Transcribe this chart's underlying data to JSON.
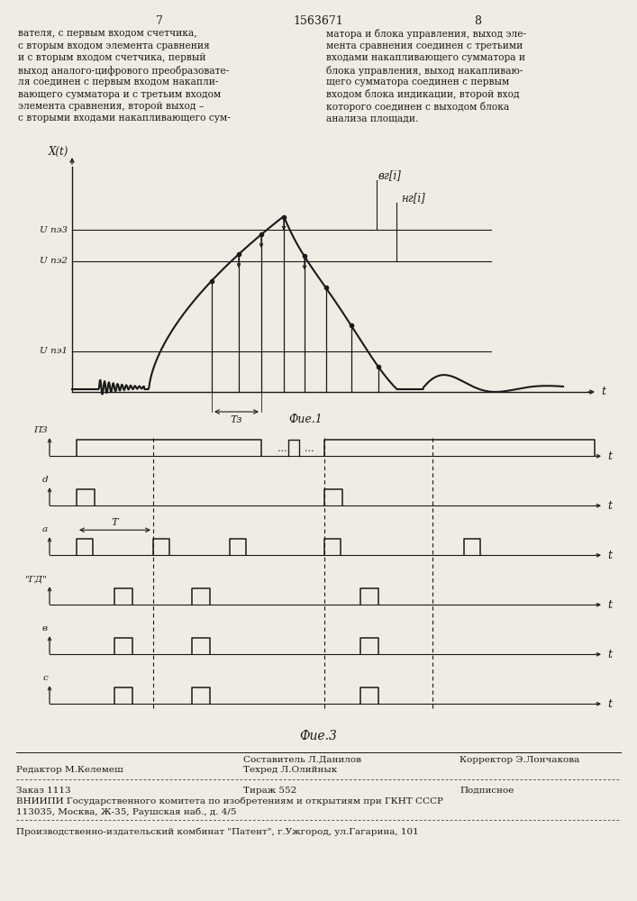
{
  "page_num_left": "7",
  "page_num_center": "1563671",
  "page_num_right": "8",
  "text_left": "вателя, с первым входом счетчика,\nс вторым входом элемента сравнения\nи с вторым входом счетчика, первый\nвыход аналого-цифрового преобразовате-\nля соединен с первым входом накапли-\nвающего сумматора и с третьим входом\nэлемента сравнения, второй выход –\nс вторыми входами накапливающего сум-",
  "text_right": "матора и блока управления, выход эле-\nмента сравнения соединен с третьими\nвходами накапливающего сумматора и\nблока управления, выход накапливаю-\nщего сумматора соединен с первым\nвходом блока индикации, второй вход\nкоторого соединен с выходом блока\nанализа площади.",
  "fig1_label": "Фие.1",
  "fig3_label": "Фие.3",
  "bg_color": "#f0ece4",
  "line_color": "#1a1a1a",
  "footer_line1_left": "Редактор М.Келемеш",
  "footer_line1_center_top": "Составитель Л.Данилов",
  "footer_line1_center_bot": "Техред Л.Олийнык",
  "footer_line1_right": "Корректор Э.Лончакова",
  "footer_line2_left": "Заказ 1113",
  "footer_line2_center": "Тираж 552",
  "footer_line2_right": "Подписное",
  "footer_line3": "ВНИИПИ Государственного комитета по изобретениям и открытиям при ГКНТ СССР",
  "footer_line4": "113035, Москва, Ж-35, Раушская наб., д. 4/5",
  "footer_line5": "Производственно-издательский комбинат \"Патент\", г.Ужгород, ул.Гагарина, 101"
}
